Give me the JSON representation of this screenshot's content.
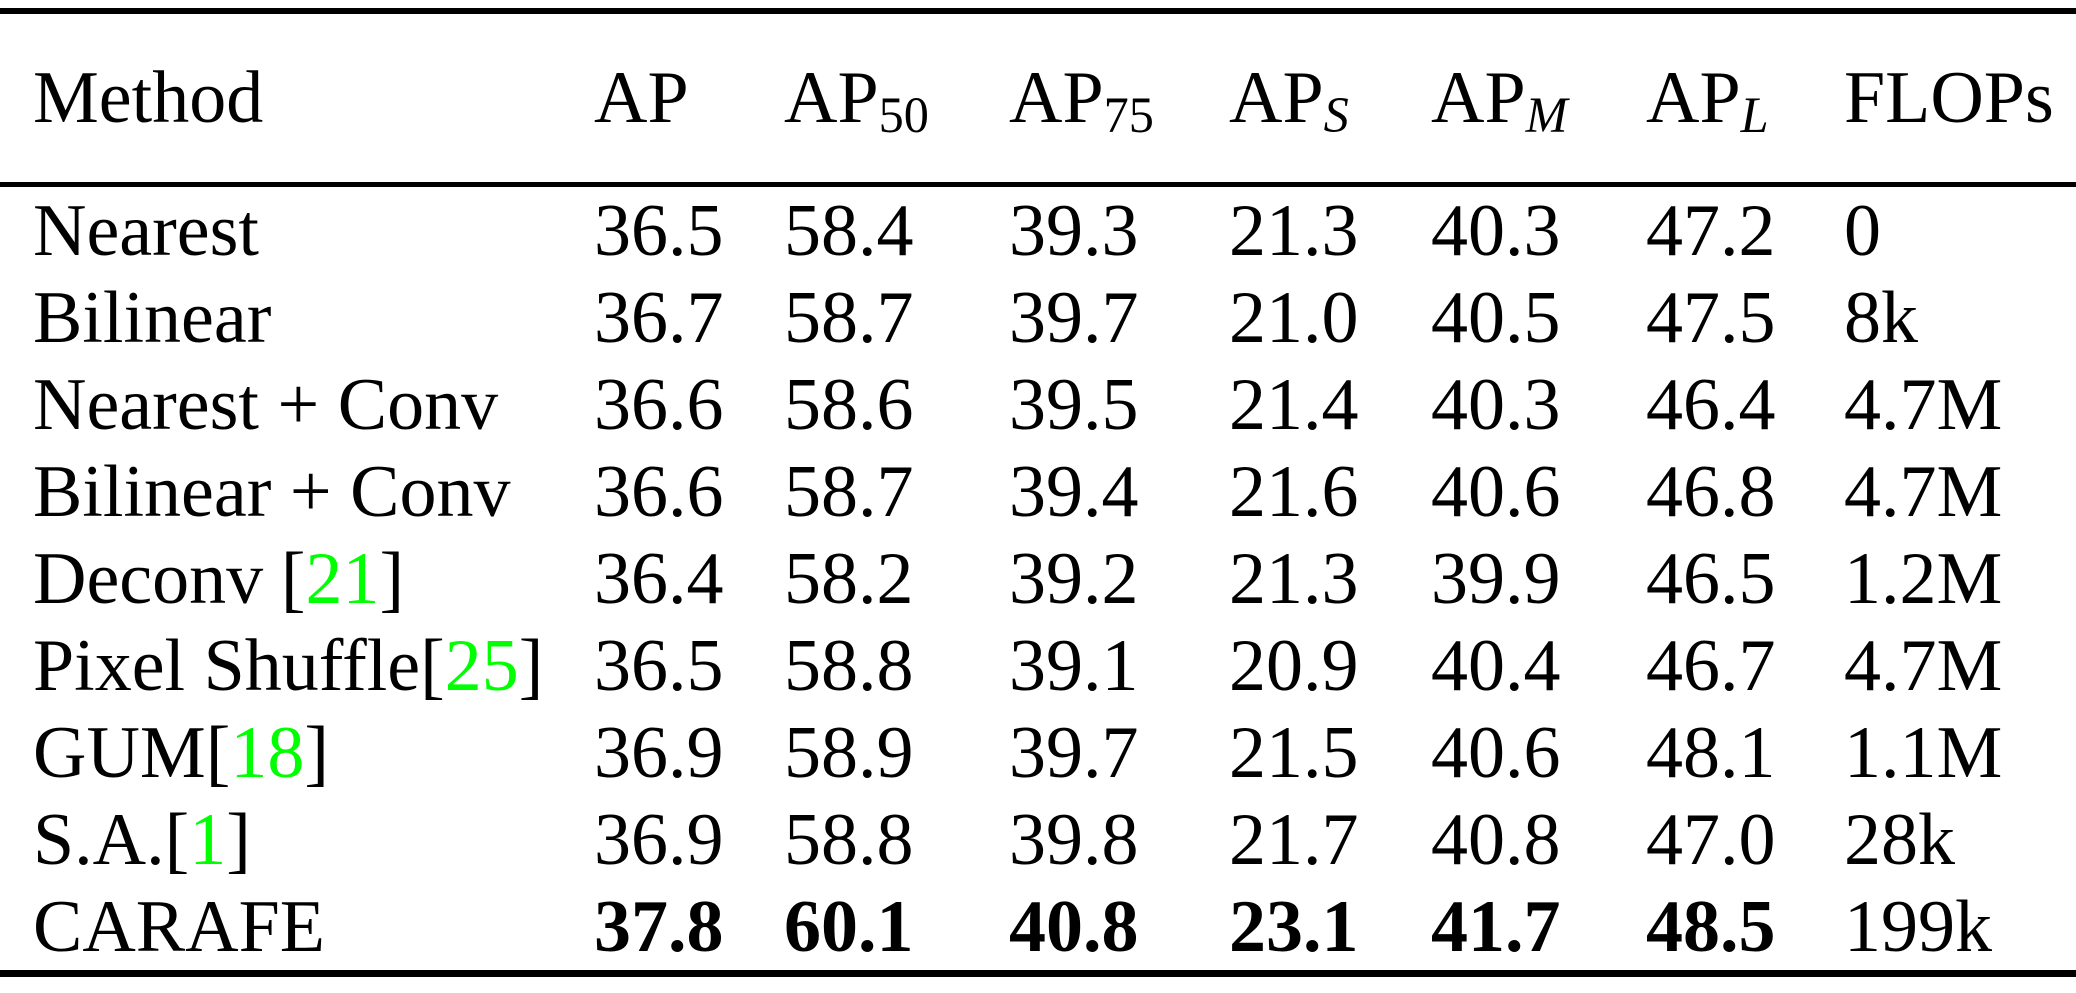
{
  "table": {
    "header": [
      {
        "text": "Method",
        "sub": "",
        "sub_italic": false
      },
      {
        "text": "AP",
        "sub": "",
        "sub_italic": false
      },
      {
        "text": "AP",
        "sub": "50",
        "sub_italic": false
      },
      {
        "text": "AP",
        "sub": "75",
        "sub_italic": false
      },
      {
        "text": "AP",
        "sub": "S",
        "sub_italic": true
      },
      {
        "text": "AP",
        "sub": "M",
        "sub_italic": true
      },
      {
        "text": "AP",
        "sub": "L",
        "sub_italic": true
      },
      {
        "text": "FLOPs",
        "sub": "",
        "sub_italic": false
      }
    ],
    "rows": [
      {
        "method": {
          "name": "Nearest",
          "cite": null,
          "space_before_bracket": false
        },
        "values": [
          "36.5",
          "58.4",
          "39.3",
          "21.3",
          "40.3",
          "47.2"
        ],
        "flops": "0",
        "bold_values": false
      },
      {
        "method": {
          "name": "Bilinear",
          "cite": null,
          "space_before_bracket": false
        },
        "values": [
          "36.7",
          "58.7",
          "39.7",
          "21.0",
          "40.5",
          "47.5"
        ],
        "flops": "8k",
        "bold_values": false
      },
      {
        "method": {
          "name": "Nearest + Conv",
          "cite": null,
          "space_before_bracket": false
        },
        "values": [
          "36.6",
          "58.6",
          "39.5",
          "21.4",
          "40.3",
          "46.4"
        ],
        "flops": "4.7M",
        "bold_values": false
      },
      {
        "method": {
          "name": "Bilinear + Conv",
          "cite": null,
          "space_before_bracket": false
        },
        "values": [
          "36.6",
          "58.7",
          "39.4",
          "21.6",
          "40.6",
          "46.8"
        ],
        "flops": "4.7M",
        "bold_values": false
      },
      {
        "method": {
          "name": "Deconv",
          "cite": "21",
          "space_before_bracket": true
        },
        "values": [
          "36.4",
          "58.2",
          "39.2",
          "21.3",
          "39.9",
          "46.5"
        ],
        "flops": "1.2M",
        "bold_values": false
      },
      {
        "method": {
          "name": "Pixel Shuffle",
          "cite": "25",
          "space_before_bracket": false
        },
        "values": [
          "36.5",
          "58.8",
          "39.1",
          "20.9",
          "40.4",
          "46.7"
        ],
        "flops": "4.7M",
        "bold_values": false
      },
      {
        "method": {
          "name": "GUM",
          "cite": "18",
          "space_before_bracket": false
        },
        "values": [
          "36.9",
          "58.9",
          "39.7",
          "21.5",
          "40.6",
          "48.1"
        ],
        "flops": "1.1M",
        "bold_values": false
      },
      {
        "method": {
          "name": "S.A.",
          "cite": "1",
          "space_before_bracket": false
        },
        "values": [
          "36.9",
          "58.8",
          "39.8",
          "21.7",
          "40.8",
          "47.0"
        ],
        "flops": "28k",
        "bold_values": false
      },
      {
        "method": {
          "name": "CARAFE",
          "cite": null,
          "space_before_bracket": false
        },
        "values": [
          "37.8",
          "60.1",
          "40.8",
          "23.1",
          "41.7",
          "48.5"
        ],
        "flops": "199k",
        "bold_values": true
      }
    ]
  },
  "symbols": {
    "bracket_open": "[",
    "bracket_close": "]"
  },
  "colors": {
    "citation_green": "#00ff00",
    "text": "#000000",
    "background": "#ffffff",
    "rule": "#000000"
  }
}
